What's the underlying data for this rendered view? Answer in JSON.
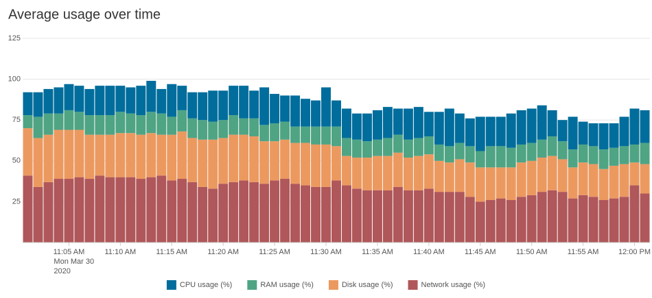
{
  "chart_data": {
    "type": "stacked_bar",
    "title": "Average usage over time",
    "categories": [
      null,
      null,
      null,
      null,
      "11:05 AM",
      null,
      null,
      null,
      null,
      "11:10 AM",
      null,
      null,
      null,
      null,
      "11:15 AM",
      null,
      null,
      null,
      null,
      "11:20 AM",
      null,
      null,
      null,
      null,
      "11:25 AM",
      null,
      null,
      null,
      null,
      "11:30 AM",
      null,
      null,
      null,
      null,
      "11:35 AM",
      null,
      null,
      null,
      null,
      "11:40 AM",
      null,
      null,
      null,
      null,
      "11:45 AM",
      null,
      null,
      null,
      null,
      "11:50 AM",
      null,
      null,
      null,
      null,
      "11:55 AM",
      null,
      null,
      null,
      null,
      "12:00 PM",
      null
    ],
    "date_label": [
      "Mon Mar 30",
      "2020"
    ],
    "series": [
      {
        "name": "CPU usage (%)",
        "color": "#006d9c",
        "values": [
          14,
          15,
          15,
          16,
          16,
          16,
          16,
          18,
          18,
          16,
          16,
          18,
          19,
          15,
          20,
          15,
          16,
          17,
          19,
          18,
          18,
          20,
          17,
          23,
          18,
          16,
          19,
          17,
          16,
          24,
          16,
          18,
          16,
          17,
          18,
          19,
          16,
          19,
          19,
          15,
          20,
          23,
          18,
          17,
          21,
          18,
          18,
          21,
          21,
          21,
          21,
          16,
          13,
          20,
          14,
          14,
          16,
          15,
          18,
          22,
          20
        ]
      },
      {
        "name": "RAM usage (%)",
        "color": "#4fa484",
        "values": [
          8,
          13,
          13,
          10,
          12,
          11,
          12,
          12,
          12,
          13,
          12,
          12,
          13,
          13,
          11,
          13,
          12,
          12,
          11,
          11,
          12,
          10,
          11,
          10,
          11,
          11,
          10,
          10,
          11,
          11,
          12,
          11,
          11,
          10,
          10,
          11,
          11,
          11,
          11,
          11,
          10,
          10,
          10,
          10,
          10,
          13,
          13,
          12,
          11,
          11,
          11,
          12,
          11,
          11,
          11,
          11,
          12,
          11,
          11,
          11,
          13
        ]
      },
      {
        "name": "Disk usage (%)",
        "color": "#ec9960",
        "values": [
          29,
          30,
          29,
          30,
          30,
          29,
          27,
          25,
          26,
          27,
          27,
          27,
          27,
          25,
          28,
          29,
          27,
          29,
          30,
          28,
          29,
          28,
          28,
          26,
          24,
          24,
          25,
          26,
          26,
          26,
          21,
          18,
          19,
          20,
          21,
          21,
          21,
          20,
          21,
          21,
          19,
          18,
          20,
          21,
          21,
          20,
          19,
          20,
          21,
          21,
          21,
          21,
          20,
          19,
          20,
          20,
          19,
          20,
          20,
          14,
          18
        ]
      },
      {
        "name": "Network usage (%)",
        "color": "#af575a",
        "values": [
          41,
          34,
          37,
          39,
          39,
          40,
          39,
          41,
          40,
          40,
          40,
          39,
          40,
          41,
          38,
          39,
          37,
          34,
          33,
          36,
          37,
          38,
          37,
          36,
          38,
          39,
          36,
          35,
          34,
          34,
          38,
          35,
          33,
          32,
          32,
          32,
          34,
          32,
          32,
          33,
          31,
          31,
          31,
          28,
          25,
          26,
          27,
          26,
          28,
          29,
          31,
          32,
          31,
          27,
          29,
          28,
          26,
          27,
          28,
          35,
          30
        ]
      }
    ],
    "ylim": [
      0,
      125
    ],
    "yticks": [
      25,
      50,
      75,
      100,
      125
    ],
    "grid": true,
    "legend": "bottom"
  }
}
